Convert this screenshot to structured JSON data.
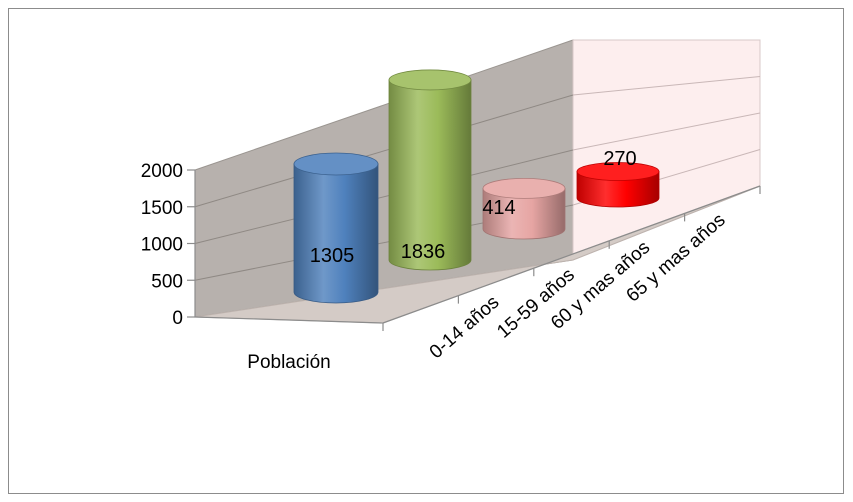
{
  "chart_data": {
    "type": "bar",
    "style": "3d-cylinder",
    "series_label": "Población",
    "categories": [
      "0-14 años",
      "15-59 años",
      "60 y mas años",
      "65 y mas años"
    ],
    "values": [
      1305,
      1836,
      414,
      270
    ],
    "data_labels": [
      "1305",
      "1836",
      "414",
      "270"
    ],
    "colors": [
      "#4f81bd",
      "#9bbb59",
      "#e6a5a3",
      "#ff0000"
    ],
    "yticks": [
      "0",
      "500",
      "1000",
      "1500",
      "2000"
    ],
    "ylim": [
      0,
      2000
    ],
    "grid": true,
    "legend": "none",
    "wall_colors": {
      "back": "#fdeeee",
      "side": "#b7b1ad",
      "floor": "#d4cbc6"
    }
  }
}
